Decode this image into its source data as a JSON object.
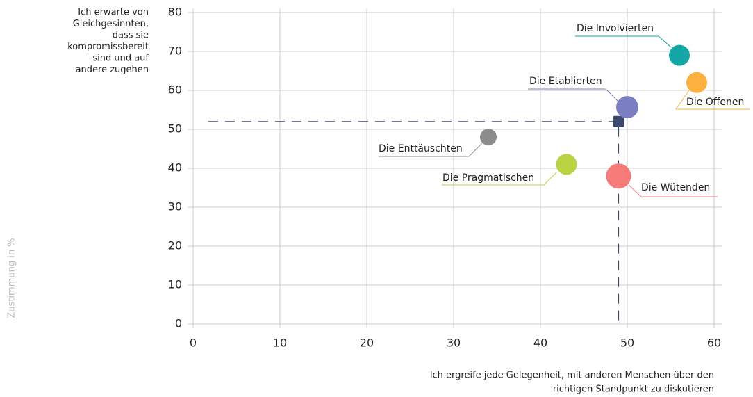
{
  "chart_data": {
    "type": "scatter",
    "ylabel": [
      "Ich erwarte von",
      "Gleichgesinnten,",
      "dass sie",
      "kompromissbereit",
      "sind und auf",
      "andere zugehen"
    ],
    "xlabel": [
      "Ich ergreife jede Gelegenheit, mit anderen Menschen über den",
      "richtigen Standpunkt zu diskutieren"
    ],
    "side_label": "Zustimmung in %",
    "xlim": [
      0,
      60
    ],
    "xticks": [
      0,
      10,
      20,
      30,
      40,
      50,
      60
    ],
    "ylim": [
      0,
      80
    ],
    "yticks": [
      0,
      10,
      20,
      30,
      40,
      50,
      60,
      70,
      80
    ],
    "grid": true,
    "series": [
      {
        "name": "Die Involvierten",
        "color": "#14a5a5",
        "x": [
          56
        ],
        "values": [
          69
        ],
        "sizes": [
          15
        ]
      },
      {
        "name": "Die Offenen",
        "color": "#fbb040",
        "x": [
          58
        ],
        "values": [
          62
        ],
        "sizes": [
          15
        ]
      },
      {
        "name": "Die Etablierten",
        "color": "#7b7fc2",
        "x": [
          50
        ],
        "values": [
          55.7
        ],
        "sizes": [
          16
        ]
      },
      {
        "name": "Die Enttäuschten",
        "color": "#8c8c8c",
        "x": [
          34
        ],
        "values": [
          48
        ],
        "sizes": [
          12
        ]
      },
      {
        "name": "Die Pragmatischen",
        "color": "#b8d443",
        "x": [
          43
        ],
        "values": [
          41
        ],
        "sizes": [
          15
        ]
      },
      {
        "name": "Die Wütenden",
        "color": "#f47b78",
        "x": [
          49
        ],
        "values": [
          38
        ],
        "sizes": [
          18
        ]
      }
    ],
    "reference_point": {
      "x": 49,
      "y": 52,
      "color": "#3b4a6e"
    }
  }
}
